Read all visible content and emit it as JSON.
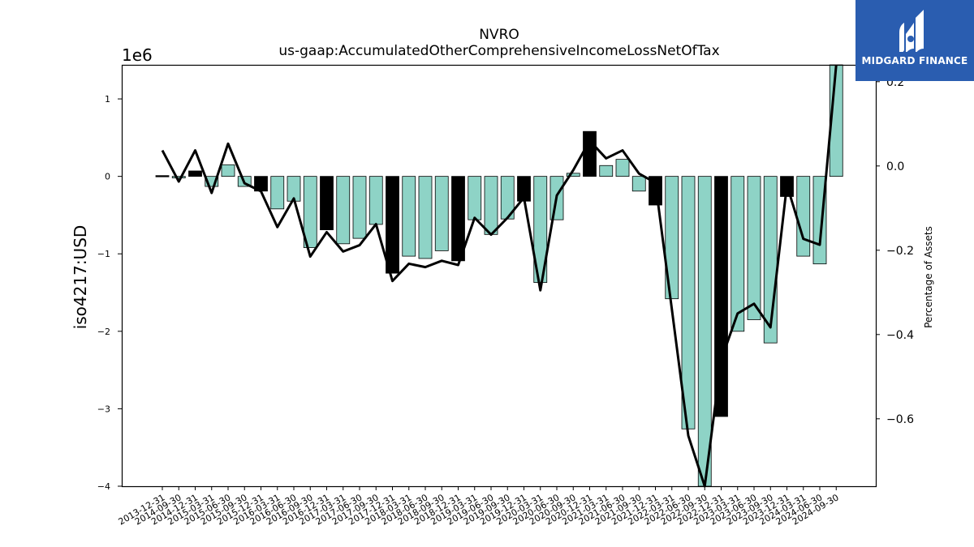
{
  "brand": {
    "name": "MIDGARD FINANCE",
    "box_color": "#2a5db0"
  },
  "chart_data": {
    "type": "bar",
    "title": "NVRO",
    "subtitle": "us-gaap:AccumulatedOtherComprehensiveIncomeLossNetOfTax",
    "ylabel": "iso4217:USD",
    "ylabel_right": "Percentage of Assets",
    "y_offset_label": "1e6",
    "ylim": [
      -4.0,
      1.44
    ],
    "ylim_right": [
      -0.76,
      0.24
    ],
    "yticks": [
      -4,
      -3,
      -2,
      -1,
      0,
      1
    ],
    "yticks_right": [
      -0.6,
      -0.4,
      -0.2,
      0.0,
      0.2
    ],
    "colors": {
      "bar_default": "#8ed3c6",
      "bar_highlight": "#000000",
      "line": "#000000"
    },
    "categories": [
      "2013-12-31",
      "2014-09-30",
      "2014-12-31",
      "2015-03-31",
      "2015-06-30",
      "2015-09-30",
      "2015-12-31",
      "2016-03-31",
      "2016-06-30",
      "2016-09-30",
      "2016-12-31",
      "2017-03-31",
      "2017-06-30",
      "2017-09-30",
      "2017-12-31",
      "2018-03-31",
      "2018-06-30",
      "2018-09-30",
      "2018-12-31",
      "2019-03-31",
      "2019-06-30",
      "2019-09-30",
      "2019-12-31",
      "2020-03-31",
      "2020-06-30",
      "2020-09-30",
      "2020-12-31",
      "2021-03-31",
      "2021-06-30",
      "2021-09-30",
      "2021-12-31",
      "2022-03-31",
      "2022-06-30",
      "2022-09-30",
      "2022-12-31",
      "2023-03-31",
      "2023-06-30",
      "2023-09-30",
      "2023-12-31",
      "2024-03-31",
      "2024-06-30",
      "2024-09-30"
    ],
    "series": [
      {
        "name": "",
        "axis": "left",
        "values": [
          0.01,
          -0.02,
          0.07,
          -0.13,
          0.15,
          -0.13,
          -0.19,
          -0.42,
          -0.32,
          -0.92,
          -0.69,
          -0.87,
          -0.8,
          -0.62,
          -1.25,
          -1.03,
          -1.06,
          -0.96,
          -1.09,
          -0.56,
          -0.75,
          -0.55,
          -0.32,
          -1.37,
          -0.56,
          0.04,
          0.58,
          0.14,
          0.22,
          -0.19,
          -0.37,
          -1.58,
          -3.26,
          -4.0,
          -3.1,
          -2.0,
          -1.85,
          -2.15,
          -0.26,
          -1.03,
          -1.13,
          1.44
        ],
        "highlight": [
          true,
          false,
          true,
          false,
          false,
          false,
          true,
          false,
          false,
          false,
          true,
          false,
          false,
          false,
          true,
          false,
          false,
          false,
          true,
          false,
          false,
          false,
          true,
          false,
          false,
          false,
          true,
          false,
          false,
          false,
          true,
          false,
          false,
          false,
          true,
          false,
          false,
          false,
          true,
          false,
          false,
          false
        ]
      },
      {
        "name": "",
        "axis": "right",
        "type": "line",
        "values": [
          0.037,
          -0.037,
          0.037,
          -0.064,
          0.053,
          -0.041,
          -0.06,
          -0.145,
          -0.077,
          -0.215,
          -0.157,
          -0.203,
          -0.188,
          -0.138,
          -0.273,
          -0.232,
          -0.24,
          -0.225,
          -0.235,
          -0.123,
          -0.163,
          -0.123,
          -0.075,
          -0.295,
          -0.07,
          -0.01,
          0.06,
          0.018,
          0.037,
          -0.018,
          -0.04,
          -0.34,
          -0.64,
          -0.76,
          -0.46,
          -0.35,
          -0.327,
          -0.383,
          -0.045,
          -0.173,
          -0.187,
          0.24
        ]
      }
    ],
    "grid": false,
    "legend": "none"
  }
}
